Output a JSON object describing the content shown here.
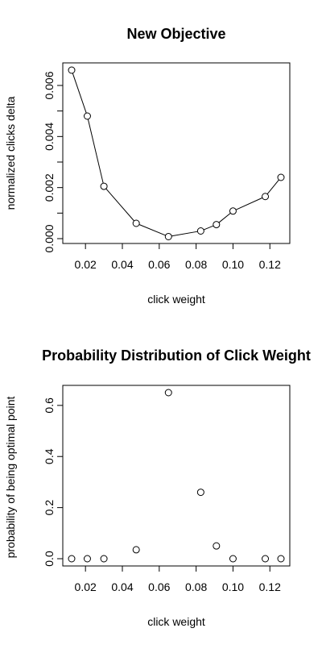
{
  "chart_data": [
    {
      "type": "line",
      "title": "New Objective",
      "xlabel": "click weight",
      "ylabel": "normalized clicks delta",
      "x": [
        0.0125,
        0.021,
        0.03,
        0.0475,
        0.065,
        0.0825,
        0.091,
        0.1,
        0.1175,
        0.126
      ],
      "y": [
        0.0066,
        0.0048,
        0.00205,
        0.0006,
        8e-05,
        0.0003,
        0.00055,
        0.00108,
        0.00165,
        0.0024
      ],
      "xlim": [
        0.0125,
        0.126
      ],
      "ylim": [
        0.0,
        0.0066
      ],
      "xticks": [
        0.02,
        0.04,
        0.06,
        0.08,
        0.1,
        0.12
      ],
      "xtick_labels": [
        "0.02",
        "0.04",
        "0.06",
        "0.08",
        "0.10",
        "0.12"
      ],
      "yticks": [
        0.0,
        0.001,
        0.002,
        0.003,
        0.004,
        0.005,
        0.006
      ],
      "ytick_labels": [
        "0.000",
        "",
        "0.002",
        "",
        "0.004",
        "",
        "0.006"
      ],
      "markers": "open-circle",
      "grid": false
    },
    {
      "type": "scatter",
      "title": "Probability Distribution of Click Weight",
      "xlabel": "click weight",
      "ylabel": "probability of being optimal point",
      "x": [
        0.0125,
        0.021,
        0.03,
        0.0475,
        0.065,
        0.0825,
        0.091,
        0.1,
        0.1175,
        0.126
      ],
      "y": [
        0.0,
        0.0,
        0.0,
        0.035,
        0.65,
        0.26,
        0.05,
        0.0,
        0.0,
        0.0
      ],
      "xlim": [
        0.0125,
        0.126
      ],
      "ylim": [
        0.0,
        0.65
      ],
      "xticks": [
        0.02,
        0.04,
        0.06,
        0.08,
        0.1,
        0.12
      ],
      "xtick_labels": [
        "0.02",
        "0.04",
        "0.06",
        "0.08",
        "0.10",
        "0.12"
      ],
      "yticks": [
        0.0,
        0.2,
        0.4,
        0.6
      ],
      "ytick_labels": [
        "0.0",
        "0.2",
        "0.4",
        "0.6"
      ],
      "markers": "open-circle",
      "grid": false
    }
  ]
}
